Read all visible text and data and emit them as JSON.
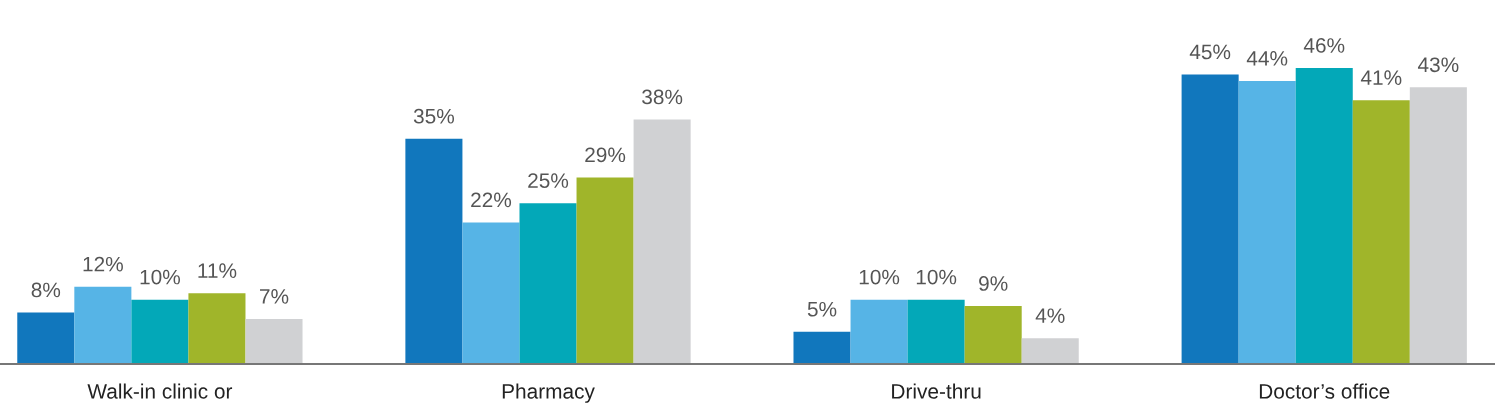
{
  "chart_data": {
    "type": "bar",
    "categories": [
      "Walk-in clinic or",
      "Pharmacy",
      "Drive-thru",
      "Doctor’s office"
    ],
    "series": [
      {
        "color": "#1177bd",
        "values": [
          8,
          35,
          5,
          45
        ],
        "value_labels": [
          "8%",
          "35%",
          "5%",
          "45%"
        ]
      },
      {
        "color": "#56b4e6",
        "values": [
          12,
          22,
          10,
          44
        ],
        "value_labels": [
          "12%",
          "22%",
          "10%",
          "44%"
        ]
      },
      {
        "color": "#03a8b8",
        "values": [
          10,
          25,
          10,
          46
        ],
        "value_labels": [
          "10%",
          "25%",
          "10%",
          "46%"
        ]
      },
      {
        "color": "#a0b52a",
        "values": [
          11,
          29,
          9,
          41
        ],
        "value_labels": [
          "11%",
          "29%",
          "9%",
          "41%"
        ]
      },
      {
        "color": "#d0d1d3",
        "values": [
          7,
          38,
          4,
          43
        ],
        "value_labels": [
          "7%",
          "38%",
          "4%",
          "43%"
        ]
      }
    ],
    "grid": false,
    "legend": false
  }
}
